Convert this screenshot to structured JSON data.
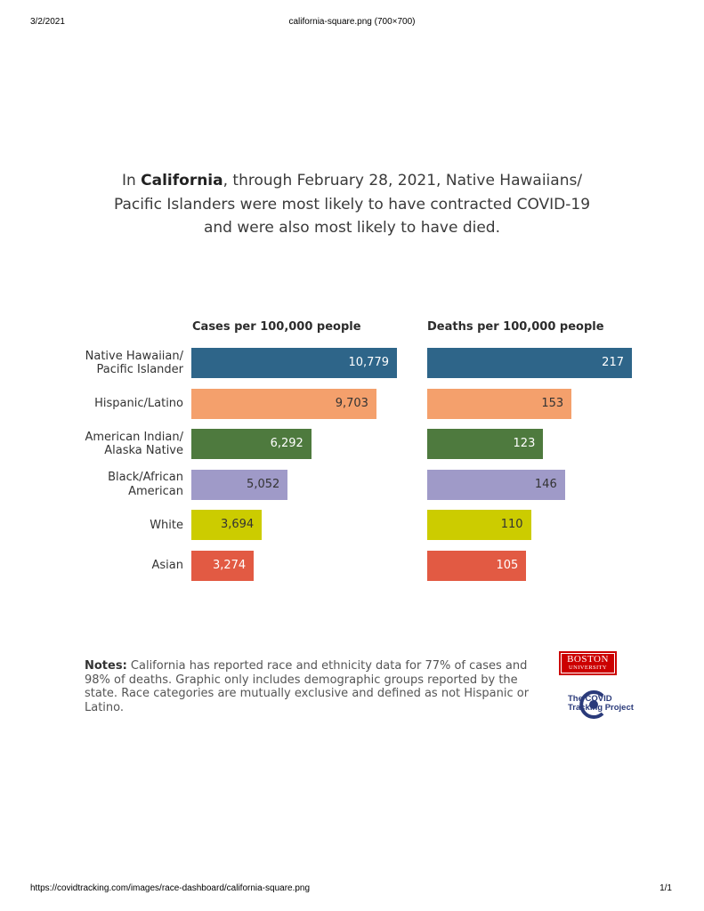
{
  "print_header": {
    "date": "3/2/2021",
    "title": "california-square.png (700×700)"
  },
  "print_footer": {
    "url": "https://covidtracking.com/images/race-dashboard/california-square.png",
    "page": "1/1"
  },
  "headline": {
    "prefix": "In ",
    "state": "California",
    "rest": ", through February 28, 2021, Native Hawaiians/ Pacific Islanders were most likely to have contracted COVID-19 and were also most likely to have died."
  },
  "chart_data": [
    {
      "type": "bar",
      "orientation": "horizontal",
      "title": "Cases per 100,000 people",
      "categories": [
        "Native Hawaiian/ Pacific Islander",
        "Hispanic/Latino",
        "American Indian/ Alaska Native",
        "Black/African American",
        "White",
        "Asian"
      ],
      "values": [
        10779,
        9703,
        6292,
        5052,
        3694,
        3274
      ],
      "value_labels": [
        "10,779",
        "9,703",
        "6,292",
        "5,052",
        "3,694",
        "3,274"
      ],
      "colors": [
        "#2e6589",
        "#f4a06c",
        "#4e7a3e",
        "#9f9ac8",
        "#cccc00",
        "#e25a43"
      ],
      "xlim": [
        0,
        10779
      ]
    },
    {
      "type": "bar",
      "orientation": "horizontal",
      "title": "Deaths per 100,000 people",
      "categories": [
        "Native Hawaiian/ Pacific Islander",
        "Hispanic/Latino",
        "American Indian/ Alaska Native",
        "Black/African American",
        "White",
        "Asian"
      ],
      "values": [
        217,
        153,
        123,
        146,
        110,
        105
      ],
      "value_labels": [
        "217",
        "153",
        "123",
        "146",
        "110",
        "105"
      ],
      "colors": [
        "#2e6589",
        "#f4a06c",
        "#4e7a3e",
        "#9f9ac8",
        "#cccc00",
        "#e25a43"
      ],
      "xlim": [
        0,
        217
      ]
    }
  ],
  "row_labels": [
    [
      "Native Hawaiian/",
      "Pacific Islander"
    ],
    [
      "Hispanic/Latino"
    ],
    [
      "American Indian/",
      "Alaska Native"
    ],
    [
      "Black/African",
      "American"
    ],
    [
      "White"
    ],
    [
      "Asian"
    ]
  ],
  "notes": {
    "label": "Notes:",
    "text": " California has reported race and ethnicity data for 77% of cases and 98% of deaths. Graphic only includes demographic groups reported by the state. Race categories are mutually exclusive and defined as not Hispanic or Latino."
  },
  "logos": {
    "bu_line1": "BOSTON",
    "bu_line2": "UNIVERSITY",
    "ctp_line1": "The COVID",
    "ctp_line2": "Tracking Project"
  }
}
